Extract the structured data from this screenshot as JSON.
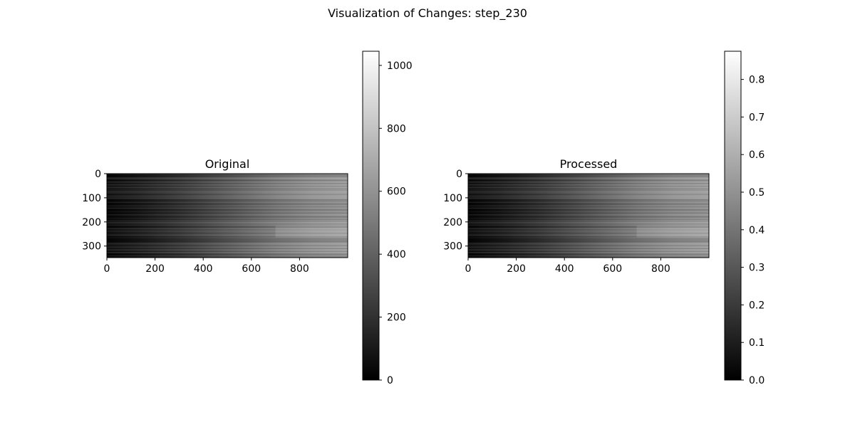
{
  "figure": {
    "suptitle": "Visualization of Changes: step_230"
  },
  "chart_data": [
    {
      "type": "heatmap",
      "title": "Original",
      "xlabel": "",
      "ylabel": "",
      "colormap": "gray",
      "image_shape": [
        348,
        1000
      ],
      "xlim": [
        0,
        1000
      ],
      "ylim": [
        348,
        0
      ],
      "x_ticks": [
        0,
        200,
        400,
        600,
        800
      ],
      "y_ticks": [
        0,
        100,
        200,
        300
      ],
      "intensity_gradient": "dark at x=0, increasing toward high x, horizontal row streaks",
      "colorbar": {
        "range": [
          0,
          1045
        ],
        "ticks": [
          0,
          200,
          400,
          600,
          800,
          1000
        ]
      }
    },
    {
      "type": "heatmap",
      "title": "Processed",
      "xlabel": "",
      "ylabel": "",
      "colormap": "gray",
      "image_shape": [
        348,
        1000
      ],
      "xlim": [
        0,
        1000
      ],
      "ylim": [
        348,
        0
      ],
      "x_ticks": [
        0,
        200,
        400,
        600,
        800
      ],
      "y_ticks": [
        0,
        100,
        200,
        300
      ],
      "intensity_gradient": "dark at x=0, increasing toward high x, horizontal row streaks",
      "colorbar": {
        "range": [
          0,
          0.875
        ],
        "ticks": [
          0.0,
          0.1,
          0.2,
          0.3,
          0.4,
          0.5,
          0.6,
          0.7,
          0.8
        ]
      }
    }
  ]
}
